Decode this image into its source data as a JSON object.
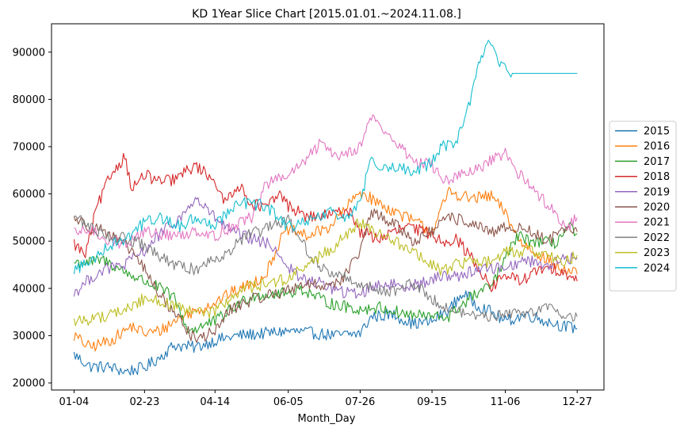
{
  "chart_data": {
    "type": "line",
    "title": "KD 1Year Slice Chart [2015.01.01.~2024.11.08.]",
    "xlabel": "Month_Day",
    "ylabel": "",
    "x_ticks": [
      "01-04",
      "02-23",
      "04-14",
      "06-05",
      "07-26",
      "09-15",
      "11-06",
      "12-27"
    ],
    "x_tick_positions": [
      4,
      54,
      104,
      156,
      207,
      258,
      310,
      361
    ],
    "xlim": [
      -12,
      380
    ],
    "ylim": [
      18500,
      96000
    ],
    "y_ticks": [
      20000,
      30000,
      40000,
      50000,
      60000,
      70000,
      80000,
      90000
    ],
    "y_tick_labels": [
      "20000",
      "30000",
      "40000",
      "50000",
      "60000",
      "70000",
      "80000",
      "90000"
    ],
    "grid": false,
    "legend_position": "center-right",
    "series": [
      {
        "name": "2015",
        "color": "#1f77b4",
        "points": [
          [
            4,
            26000
          ],
          [
            15,
            23500
          ],
          [
            30,
            23300
          ],
          [
            40,
            22400
          ],
          [
            54,
            23200
          ],
          [
            65,
            25500
          ],
          [
            75,
            28000
          ],
          [
            90,
            27500
          ],
          [
            104,
            29000
          ],
          [
            120,
            30000
          ],
          [
            140,
            30500
          ],
          [
            156,
            31000
          ],
          [
            175,
            30500
          ],
          [
            190,
            30000
          ],
          [
            207,
            30500
          ],
          [
            215,
            34000
          ],
          [
            230,
            34500
          ],
          [
            245,
            32500
          ],
          [
            258,
            33000
          ],
          [
            270,
            35500
          ],
          [
            280,
            39000
          ],
          [
            290,
            36500
          ],
          [
            300,
            35000
          ],
          [
            310,
            33000
          ],
          [
            325,
            34500
          ],
          [
            340,
            33000
          ],
          [
            352,
            32000
          ],
          [
            361,
            31500
          ]
        ]
      },
      {
        "name": "2016",
        "color": "#ff7f0e",
        "points": [
          [
            4,
            30000
          ],
          [
            15,
            27500
          ],
          [
            30,
            29000
          ],
          [
            45,
            32000
          ],
          [
            54,
            30500
          ],
          [
            65,
            31000
          ],
          [
            80,
            34000
          ],
          [
            104,
            37000
          ],
          [
            115,
            39000
          ],
          [
            130,
            41000
          ],
          [
            140,
            43000
          ],
          [
            150,
            50000
          ],
          [
            156,
            52500
          ],
          [
            170,
            51000
          ],
          [
            185,
            53000
          ],
          [
            200,
            58000
          ],
          [
            207,
            60500
          ],
          [
            220,
            58000
          ],
          [
            240,
            55000
          ],
          [
            250,
            53500
          ],
          [
            258,
            52000
          ],
          [
            270,
            60500
          ],
          [
            285,
            59000
          ],
          [
            300,
            59500
          ],
          [
            310,
            56000
          ],
          [
            320,
            50000
          ],
          [
            335,
            47000
          ],
          [
            350,
            44000
          ],
          [
            361,
            43000
          ]
        ]
      },
      {
        "name": "2017",
        "color": "#2ca02c",
        "points": [
          [
            4,
            45500
          ],
          [
            15,
            45500
          ],
          [
            25,
            46000
          ],
          [
            40,
            43500
          ],
          [
            54,
            41500
          ],
          [
            65,
            40000
          ],
          [
            75,
            38000
          ],
          [
            85,
            31000
          ],
          [
            104,
            33000
          ],
          [
            115,
            35500
          ],
          [
            130,
            38500
          ],
          [
            156,
            39000
          ],
          [
            165,
            40000
          ],
          [
            180,
            37500
          ],
          [
            190,
            36500
          ],
          [
            207,
            35500
          ],
          [
            220,
            36000
          ],
          [
            240,
            34500
          ],
          [
            258,
            34000
          ],
          [
            270,
            34000
          ],
          [
            285,
            38000
          ],
          [
            300,
            40500
          ],
          [
            310,
            46000
          ],
          [
            318,
            51000
          ],
          [
            330,
            50000
          ],
          [
            345,
            49500
          ],
          [
            355,
            53000
          ],
          [
            361,
            51500
          ]
        ]
      },
      {
        "name": "2018",
        "color": "#d62728",
        "points": [
          [
            4,
            49500
          ],
          [
            12,
            47000
          ],
          [
            20,
            57000
          ],
          [
            30,
            64000
          ],
          [
            40,
            68000
          ],
          [
            45,
            61000
          ],
          [
            54,
            64000
          ],
          [
            65,
            62500
          ],
          [
            75,
            63000
          ],
          [
            90,
            66000
          ],
          [
            104,
            63000
          ],
          [
            110,
            58000
          ],
          [
            120,
            62000
          ],
          [
            130,
            58000
          ],
          [
            140,
            57000
          ],
          [
            150,
            60000
          ],
          [
            156,
            57500
          ],
          [
            170,
            55000
          ],
          [
            185,
            55500
          ],
          [
            200,
            56500
          ],
          [
            207,
            52000
          ],
          [
            220,
            50500
          ],
          [
            240,
            53000
          ],
          [
            258,
            51500
          ],
          [
            265,
            50000
          ],
          [
            275,
            50500
          ],
          [
            290,
            45000
          ],
          [
            300,
            40000
          ],
          [
            310,
            43000
          ],
          [
            320,
            41500
          ],
          [
            335,
            44000
          ],
          [
            350,
            44000
          ],
          [
            361,
            41500
          ]
        ]
      },
      {
        "name": "2019",
        "color": "#9467bd",
        "points": [
          [
            4,
            39000
          ],
          [
            15,
            42000
          ],
          [
            25,
            44000
          ],
          [
            40,
            45000
          ],
          [
            54,
            48000
          ],
          [
            65,
            51500
          ],
          [
            80,
            55000
          ],
          [
            90,
            59000
          ],
          [
            104,
            55000
          ],
          [
            115,
            52000
          ],
          [
            130,
            50500
          ],
          [
            145,
            49000
          ],
          [
            156,
            44500
          ],
          [
            165,
            42000
          ],
          [
            180,
            41000
          ],
          [
            195,
            39000
          ],
          [
            207,
            39000
          ],
          [
            220,
            41000
          ],
          [
            240,
            40500
          ],
          [
            258,
            41500
          ],
          [
            265,
            43000
          ],
          [
            275,
            42500
          ],
          [
            290,
            44000
          ],
          [
            310,
            44500
          ],
          [
            325,
            46000
          ],
          [
            340,
            45000
          ],
          [
            350,
            46000
          ],
          [
            361,
            46500
          ]
        ]
      },
      {
        "name": "2020",
        "color": "#8c564b",
        "points": [
          [
            4,
            55000
          ],
          [
            15,
            53000
          ],
          [
            25,
            52500
          ],
          [
            35,
            50000
          ],
          [
            45,
            48000
          ],
          [
            54,
            44000
          ],
          [
            65,
            38500
          ],
          [
            75,
            35000
          ],
          [
            90,
            29000
          ],
          [
            104,
            31000
          ],
          [
            115,
            35500
          ],
          [
            125,
            37000
          ],
          [
            140,
            38500
          ],
          [
            156,
            39500
          ],
          [
            165,
            41000
          ],
          [
            180,
            40500
          ],
          [
            195,
            42000
          ],
          [
            207,
            48000
          ],
          [
            215,
            56000
          ],
          [
            230,
            54000
          ],
          [
            245,
            50000
          ],
          [
            258,
            52000
          ],
          [
            270,
            55000
          ],
          [
            285,
            54000
          ],
          [
            300,
            51500
          ],
          [
            310,
            53000
          ],
          [
            325,
            52500
          ],
          [
            340,
            50000
          ],
          [
            350,
            52000
          ],
          [
            361,
            52000
          ]
        ]
      },
      {
        "name": "2021",
        "color": "#e377c2",
        "points": [
          [
            4,
            51500
          ],
          [
            15,
            52500
          ],
          [
            30,
            50000
          ],
          [
            40,
            49500
          ],
          [
            54,
            52000
          ],
          [
            65,
            51500
          ],
          [
            80,
            51000
          ],
          [
            90,
            52500
          ],
          [
            104,
            51000
          ],
          [
            115,
            53000
          ],
          [
            130,
            55000
          ],
          [
            140,
            62000
          ],
          [
            156,
            64000
          ],
          [
            165,
            66000
          ],
          [
            180,
            71000
          ],
          [
            190,
            68000
          ],
          [
            207,
            70000
          ],
          [
            215,
            76500
          ],
          [
            225,
            73000
          ],
          [
            235,
            70000
          ],
          [
            245,
            67000
          ],
          [
            258,
            66000
          ],
          [
            265,
            63000
          ],
          [
            275,
            63500
          ],
          [
            290,
            65000
          ],
          [
            300,
            67000
          ],
          [
            310,
            68500
          ],
          [
            320,
            64000
          ],
          [
            335,
            59500
          ],
          [
            345,
            56000
          ],
          [
            355,
            53000
          ],
          [
            361,
            55000
          ]
        ]
      },
      {
        "name": "2022",
        "color": "#7f7f7f",
        "points": [
          [
            4,
            55500
          ],
          [
            15,
            53000
          ],
          [
            30,
            51000
          ],
          [
            40,
            50500
          ],
          [
            54,
            49000
          ],
          [
            65,
            46500
          ],
          [
            80,
            44500
          ],
          [
            90,
            44000
          ],
          [
            104,
            46500
          ],
          [
            115,
            48000
          ],
          [
            125,
            51000
          ],
          [
            140,
            52500
          ],
          [
            156,
            54500
          ],
          [
            165,
            50000
          ],
          [
            180,
            44000
          ],
          [
            195,
            42500
          ],
          [
            207,
            41000
          ],
          [
            215,
            40000
          ],
          [
            230,
            39500
          ],
          [
            245,
            41000
          ],
          [
            258,
            38000
          ],
          [
            270,
            35500
          ],
          [
            285,
            34500
          ],
          [
            300,
            34000
          ],
          [
            310,
            34500
          ],
          [
            325,
            35000
          ],
          [
            340,
            36000
          ],
          [
            350,
            34500
          ],
          [
            361,
            34000
          ]
        ]
      },
      {
        "name": "2023",
        "color": "#bcbd22",
        "points": [
          [
            4,
            33000
          ],
          [
            15,
            33500
          ],
          [
            30,
            34500
          ],
          [
            45,
            36000
          ],
          [
            54,
            38000
          ],
          [
            65,
            37500
          ],
          [
            75,
            36000
          ],
          [
            85,
            35000
          ],
          [
            104,
            35000
          ],
          [
            115,
            38000
          ],
          [
            125,
            40000
          ],
          [
            140,
            41000
          ],
          [
            156,
            42000
          ],
          [
            165,
            44000
          ],
          [
            180,
            47000
          ],
          [
            195,
            50500
          ],
          [
            207,
            54000
          ],
          [
            215,
            52000
          ],
          [
            230,
            50500
          ],
          [
            245,
            47500
          ],
          [
            258,
            45000
          ],
          [
            265,
            43500
          ],
          [
            275,
            45000
          ],
          [
            290,
            46000
          ],
          [
            300,
            45500
          ],
          [
            310,
            47500
          ],
          [
            325,
            48000
          ],
          [
            340,
            47500
          ],
          [
            350,
            45500
          ],
          [
            361,
            47000
          ]
        ]
      },
      {
        "name": "2024",
        "color": "#17becf",
        "points": [
          [
            4,
            44000
          ],
          [
            15,
            45500
          ],
          [
            25,
            48500
          ],
          [
            40,
            50500
          ],
          [
            54,
            54000
          ],
          [
            65,
            55000
          ],
          [
            80,
            53000
          ],
          [
            90,
            55000
          ],
          [
            104,
            53500
          ],
          [
            115,
            57000
          ],
          [
            125,
            58000
          ],
          [
            140,
            57500
          ],
          [
            156,
            53000
          ],
          [
            170,
            54000
          ],
          [
            185,
            56000
          ],
          [
            200,
            55000
          ],
          [
            207,
            58000
          ],
          [
            215,
            68000
          ],
          [
            225,
            65000
          ],
          [
            235,
            66000
          ],
          [
            245,
            64000
          ],
          [
            258,
            67000
          ],
          [
            265,
            70000
          ],
          [
            275,
            71000
          ],
          [
            285,
            79000
          ],
          [
            292,
            89000
          ],
          [
            300,
            92500
          ],
          [
            305,
            87000
          ],
          [
            310,
            87500
          ],
          [
            315,
            85500
          ],
          [
            361,
            85500
          ]
        ]
      }
    ]
  }
}
